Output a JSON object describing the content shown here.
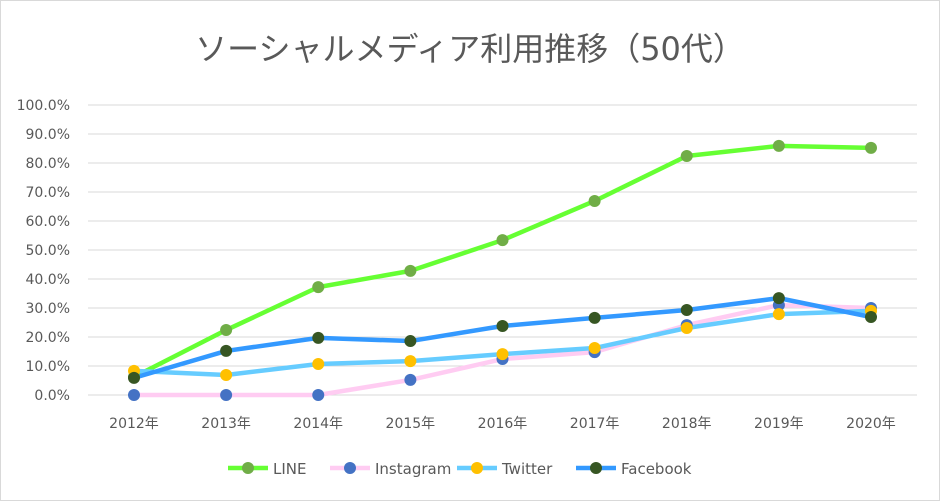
{
  "chart_data": {
    "type": "line",
    "title": "ソーシャルメディア利用推移（50代）",
    "categories": [
      "2012年",
      "2013年",
      "2014年",
      "2015年",
      "2016年",
      "2017年",
      "2018年",
      "2019年",
      "2020年"
    ],
    "ylim": [
      0,
      100
    ],
    "yticks": [
      "0.0%",
      "10.0%",
      "20.0%",
      "30.0%",
      "40.0%",
      "50.0%",
      "60.0%",
      "70.0%",
      "80.0%",
      "90.0%",
      "100.0%"
    ],
    "grid": true,
    "legend_position": "bottom",
    "series": [
      {
        "name": "LINE",
        "line_color": "#66ff33",
        "marker_color": "#70ad47",
        "values": [
          6.2,
          22.4,
          37.2,
          42.8,
          53.4,
          66.9,
          82.4,
          85.9,
          85.2
        ]
      },
      {
        "name": "Instagram",
        "line_color": "#ffccf2",
        "marker_color": "#4472c4",
        "values": [
          0.0,
          0.0,
          0.0,
          5.2,
          12.4,
          14.8,
          24.1,
          31.0,
          30.0
        ]
      },
      {
        "name": "Twitter",
        "line_color": "#66ccff",
        "marker_color": "#ffc000",
        "values": [
          8.3,
          6.9,
          10.7,
          11.7,
          14.1,
          16.2,
          23.1,
          27.9,
          29.0
        ]
      },
      {
        "name": "Facebook",
        "line_color": "#3399ff",
        "marker_color": "#375623",
        "values": [
          5.9,
          15.2,
          19.7,
          18.6,
          23.8,
          26.6,
          29.3,
          33.4,
          26.9
        ]
      }
    ]
  }
}
